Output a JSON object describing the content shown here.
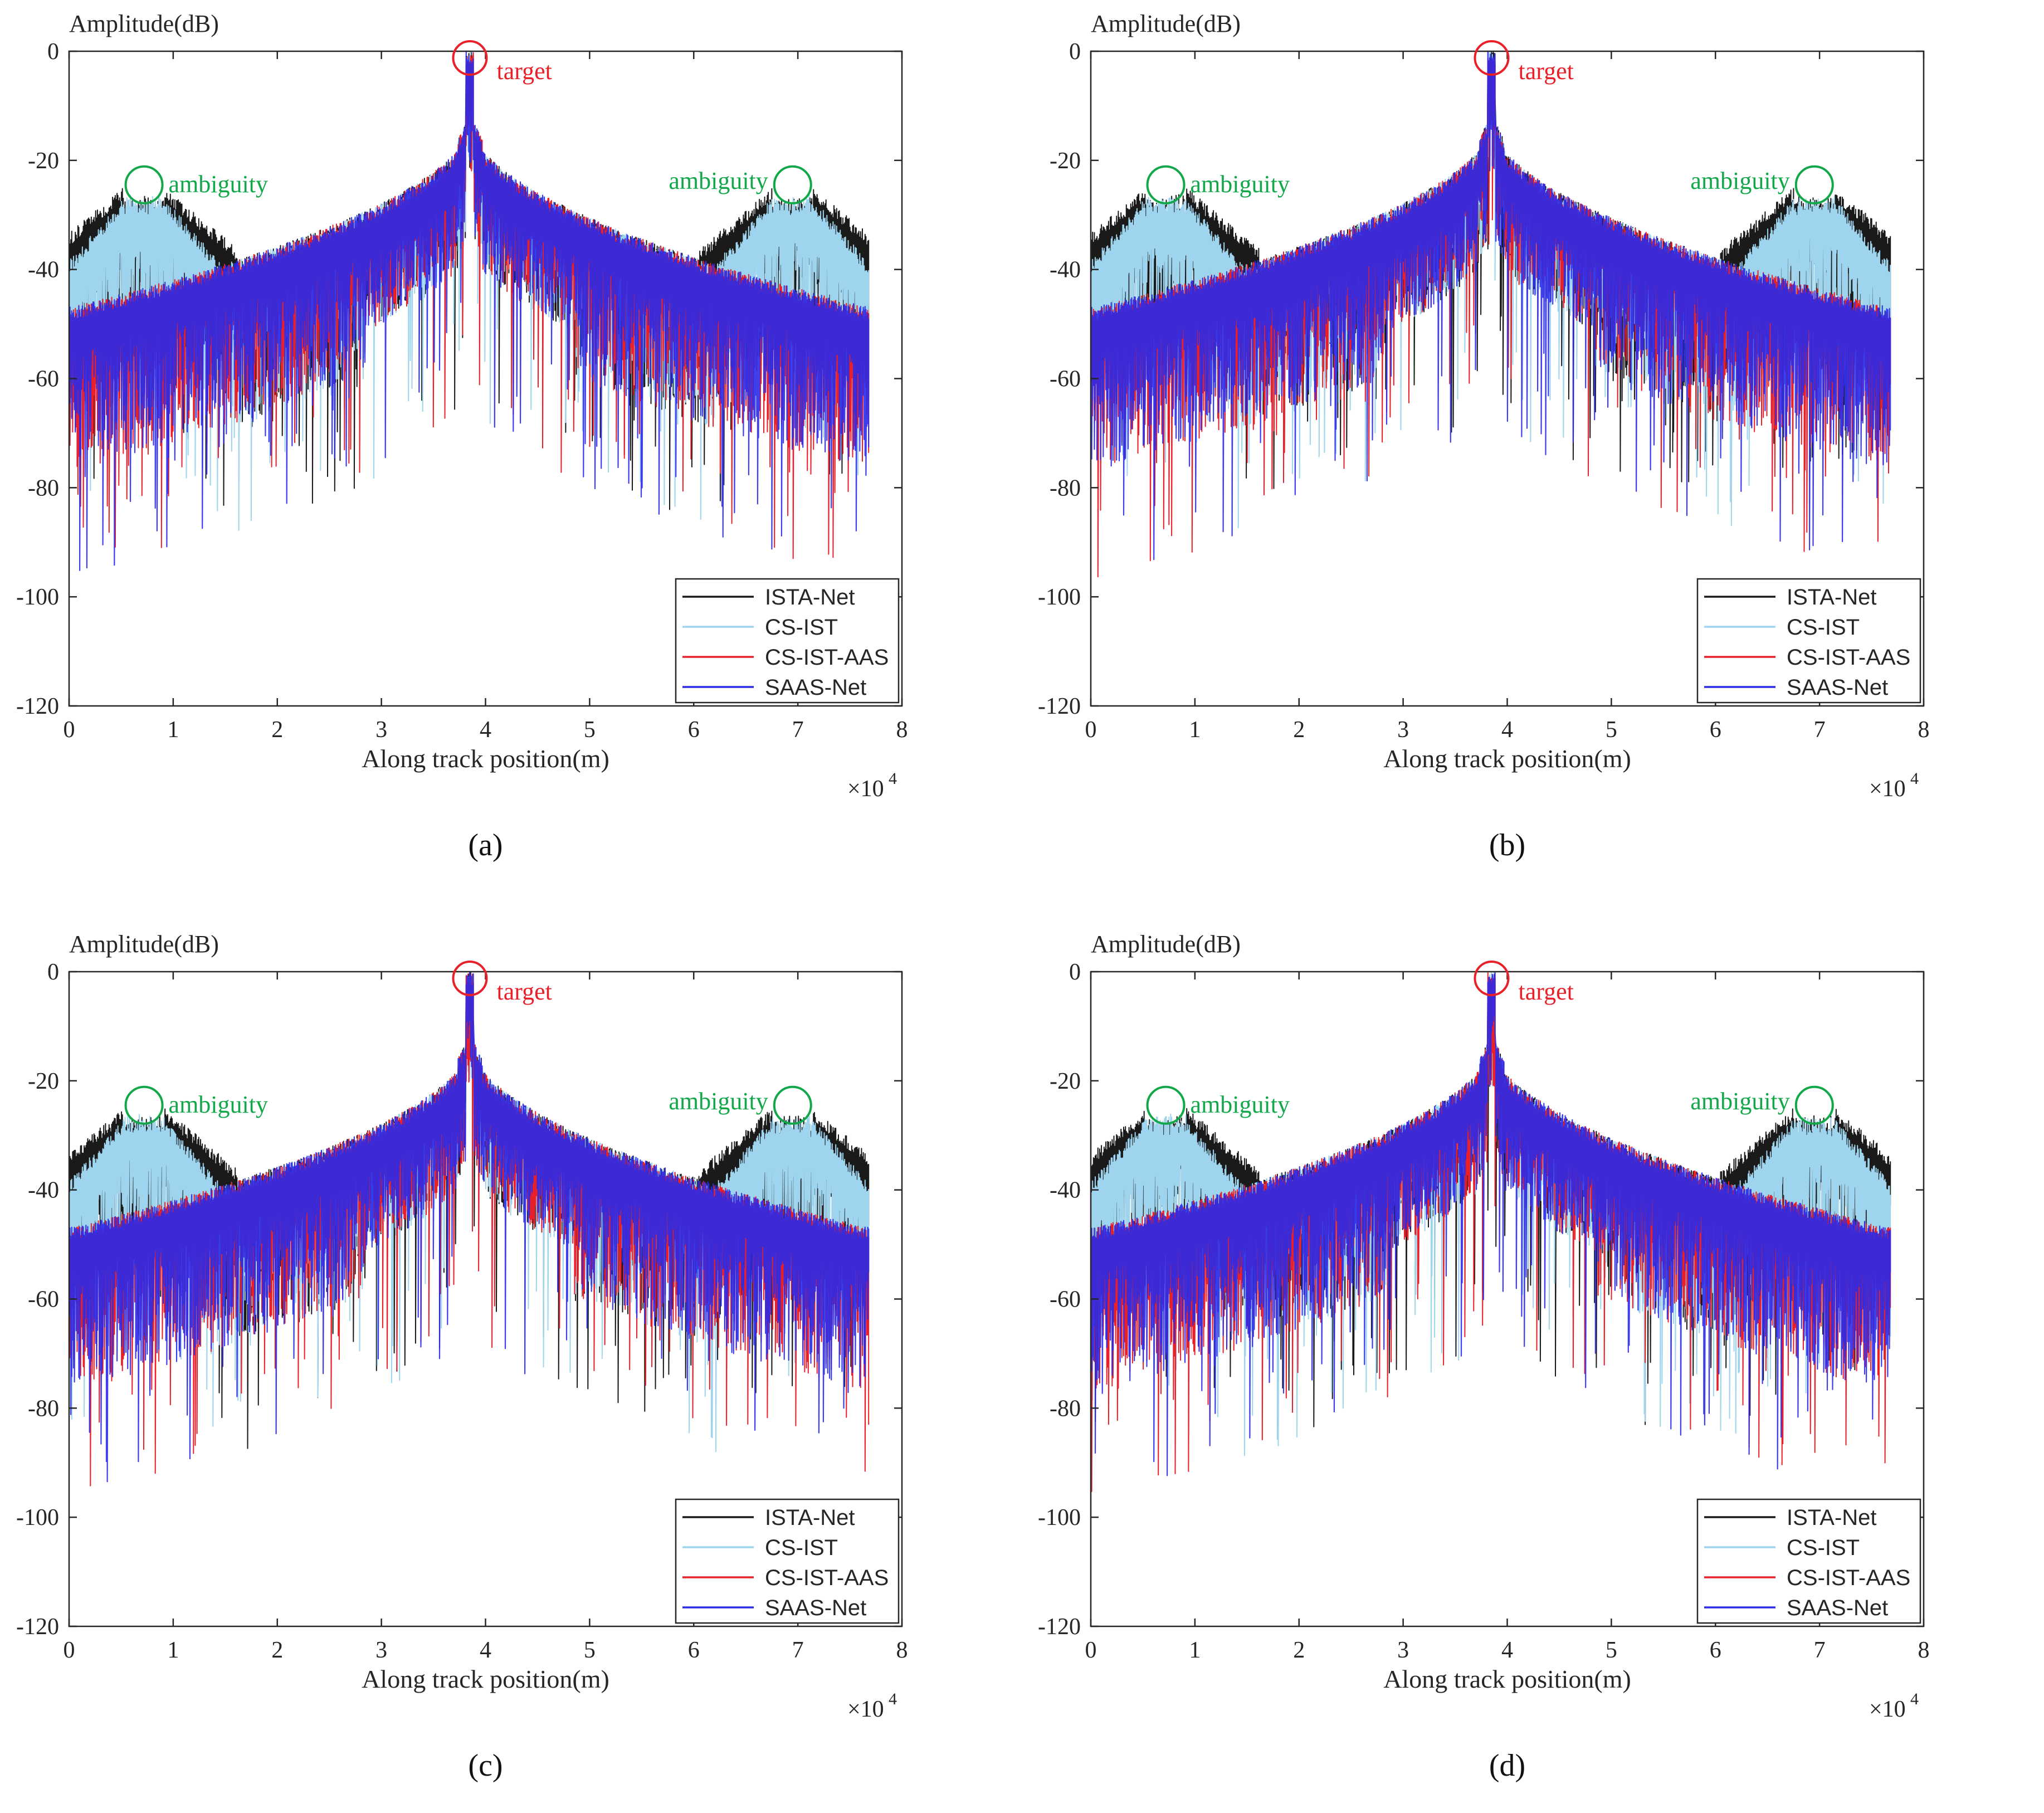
{
  "figure": {
    "background": "#ffffff"
  },
  "chart_data": [
    {
      "panel_label": "(a)",
      "type": "line",
      "ylabel": "Amplitude(dB)",
      "xlabel": "Along track position(m)",
      "x_multiplier": "×10",
      "x_exponent": "4",
      "xlim": [
        0,
        8
      ],
      "ylim": [
        -120,
        0
      ],
      "xticks": [
        "0",
        "1",
        "2",
        "3",
        "4",
        "5",
        "6",
        "7",
        "8"
      ],
      "yticks": [
        "0",
        "-20",
        "-40",
        "-60",
        "-80",
        "-100",
        "-120"
      ],
      "target_label": "target",
      "ambiguity_labels": [
        "ambiguity",
        "ambiguity"
      ],
      "target_x": 3.85,
      "ambiguity_x": [
        0.72,
        6.95
      ],
      "ambiguity_level_db": -25,
      "legend": [
        "ISTA-Net",
        "CS-IST",
        "CS-IST-AAS",
        "SAAS-Net"
      ],
      "series": [
        {
          "name": "ISTA-Net",
          "color": "#1a1a1a",
          "shoulder_db": -36,
          "floor_db": -49
        },
        {
          "name": "CS-IST",
          "color": "#9fd4ee",
          "shoulder_db": -40,
          "floor_db": -48
        },
        {
          "name": "CS-IST-AAS",
          "color": "#e8202a",
          "shoulder_db": -47,
          "floor_db": -49
        },
        {
          "name": "SAAS-Net",
          "color": "#2b2be8",
          "shoulder_db": -50,
          "floor_db": -50
        }
      ]
    },
    {
      "panel_label": "(b)",
      "type": "line",
      "ylabel": "Amplitude(dB)",
      "xlabel": "Along track position(m)",
      "x_multiplier": "×10",
      "x_exponent": "4",
      "xlim": [
        0,
        8
      ],
      "ylim": [
        -120,
        0
      ],
      "xticks": [
        "0",
        "1",
        "2",
        "3",
        "4",
        "5",
        "6",
        "7",
        "8"
      ],
      "yticks": [
        "0",
        "-20",
        "-40",
        "-60",
        "-80",
        "-100",
        "-120"
      ],
      "target_label": "target",
      "ambiguity_labels": [
        "ambiguity",
        "ambiguity"
      ],
      "target_x": 3.85,
      "ambiguity_x": [
        0.72,
        6.95
      ],
      "ambiguity_level_db": -25,
      "legend": [
        "ISTA-Net",
        "CS-IST",
        "CS-IST-AAS",
        "SAAS-Net"
      ],
      "series": [
        {
          "name": "ISTA-Net",
          "color": "#1a1a1a",
          "shoulder_db": -36,
          "floor_db": -49
        },
        {
          "name": "CS-IST",
          "color": "#9fd4ee",
          "shoulder_db": -40,
          "floor_db": -48
        },
        {
          "name": "CS-IST-AAS",
          "color": "#e8202a",
          "shoulder_db": -48,
          "floor_db": -49
        },
        {
          "name": "SAAS-Net",
          "color": "#2b2be8",
          "shoulder_db": -49,
          "floor_db": -49
        }
      ]
    },
    {
      "panel_label": "(c)",
      "type": "line",
      "ylabel": "Amplitude(dB)",
      "xlabel": "Along track position(m)",
      "x_multiplier": "×10",
      "x_exponent": "4",
      "xlim": [
        0,
        8
      ],
      "ylim": [
        -120,
        0
      ],
      "xticks": [
        "0",
        "1",
        "2",
        "3",
        "4",
        "5",
        "6",
        "7",
        "8"
      ],
      "yticks": [
        "0",
        "-20",
        "-40",
        "-60",
        "-80",
        "-100",
        "-120"
      ],
      "target_label": "target",
      "ambiguity_labels": [
        "ambiguity",
        "ambiguity"
      ],
      "target_x": 3.85,
      "ambiguity_x": [
        0.72,
        6.95
      ],
      "ambiguity_level_db": -25,
      "legend": [
        "ISTA-Net",
        "CS-IST",
        "CS-IST-AAS",
        "SAAS-Net"
      ],
      "series": [
        {
          "name": "ISTA-Net",
          "color": "#1a1a1a",
          "shoulder_db": -36,
          "floor_db": -49
        },
        {
          "name": "CS-IST",
          "color": "#9fd4ee",
          "shoulder_db": -40,
          "floor_db": -48
        },
        {
          "name": "CS-IST-AAS",
          "color": "#e8202a",
          "shoulder_db": -48,
          "floor_db": -49
        },
        {
          "name": "SAAS-Net",
          "color": "#2b2be8",
          "shoulder_db": -50,
          "floor_db": -50
        }
      ]
    },
    {
      "panel_label": "(d)",
      "type": "line",
      "ylabel": "Amplitude(dB)",
      "xlabel": "Along track position(m)",
      "x_multiplier": "×10",
      "x_exponent": "4",
      "xlim": [
        0,
        8
      ],
      "ylim": [
        -120,
        0
      ],
      "xticks": [
        "0",
        "1",
        "2",
        "3",
        "4",
        "5",
        "6",
        "7",
        "8"
      ],
      "yticks": [
        "0",
        "-20",
        "-40",
        "-60",
        "-80",
        "-100",
        "-120"
      ],
      "target_label": "target",
      "ambiguity_labels": [
        "ambiguity",
        "ambiguity"
      ],
      "target_x": 3.85,
      "ambiguity_x": [
        0.72,
        6.95
      ],
      "ambiguity_level_db": -25,
      "legend": [
        "ISTA-Net",
        "CS-IST",
        "CS-IST-AAS",
        "SAAS-Net"
      ],
      "series": [
        {
          "name": "ISTA-Net",
          "color": "#1a1a1a",
          "shoulder_db": -36,
          "floor_db": -49
        },
        {
          "name": "CS-IST",
          "color": "#9fd4ee",
          "shoulder_db": -40,
          "floor_db": -48
        },
        {
          "name": "CS-IST-AAS",
          "color": "#e8202a",
          "shoulder_db": -47,
          "floor_db": -49
        },
        {
          "name": "SAAS-Net",
          "color": "#2b2be8",
          "shoulder_db": -50,
          "floor_db": -50
        }
      ]
    }
  ],
  "annotation_colors": {
    "target": "#e8202a",
    "ambiguity": "#12a84a"
  }
}
